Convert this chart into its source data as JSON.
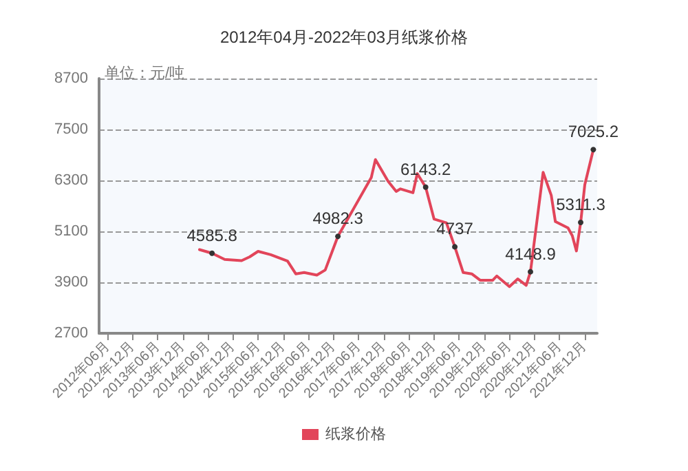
{
  "chart_data": {
    "type": "line",
    "title": "2012年04月-2022年03月纸浆价格",
    "ylabel": "单位：元/吨",
    "x": [
      "2014-04",
      "2014-07",
      "2014-10",
      "2015-02",
      "2015-04",
      "2015-06",
      "2015-09",
      "2016-01",
      "2016-03",
      "2016-05",
      "2016-08",
      "2016-10",
      "2017-01",
      "2017-09",
      "2017-10",
      "2018-01",
      "2018-03",
      "2018-04",
      "2018-07",
      "2018-08",
      "2018-09",
      "2018-10",
      "2018-12",
      "2019-03",
      "2019-05",
      "2019-07",
      "2019-09",
      "2019-11",
      "2020-02",
      "2020-03",
      "2020-06",
      "2020-08",
      "2020-10",
      "2020-11",
      "2021-02",
      "2021-04",
      "2021-05",
      "2021-08",
      "2021-09",
      "2021-10",
      "2021-11",
      "2021-12",
      "2022-02"
    ],
    "series": [
      {
        "name": "纸浆价格",
        "color": "#e2455a",
        "values": [
          4670,
          4585.8,
          4440,
          4410,
          4500,
          4630,
          4550,
          4400,
          4100,
          4130,
          4070,
          4190,
          4982.3,
          6370,
          6790,
          6280,
          6040,
          6100,
          6010,
          6460,
          6300,
          6143.2,
          5390,
          5300,
          4737,
          4130,
          4100,
          3950,
          3950,
          4050,
          3800,
          3980,
          3830,
          4148.9,
          6490,
          5950,
          5330,
          5180,
          5000,
          4640,
          5311.3,
          6200,
          7025.2
        ],
        "value_labels": [
          null,
          "4585.8",
          null,
          null,
          null,
          null,
          null,
          null,
          null,
          null,
          null,
          null,
          "4982.3",
          null,
          null,
          null,
          null,
          null,
          null,
          null,
          null,
          "6143.2",
          null,
          null,
          "4737",
          null,
          null,
          null,
          null,
          null,
          null,
          null,
          null,
          "4148.9",
          null,
          null,
          null,
          null,
          null,
          null,
          "5311.3",
          null,
          "7025.2"
        ]
      }
    ],
    "xlim": [
      "2012-04",
      "2022-03"
    ],
    "xticks": [
      {
        "value": "2012-06",
        "label": "2012年06月"
      },
      {
        "value": "2012-12",
        "label": "2012年12月"
      },
      {
        "value": "2013-06",
        "label": "2013年06月"
      },
      {
        "value": "2013-12",
        "label": "2013年12月"
      },
      {
        "value": "2014-06",
        "label": "2014年06月"
      },
      {
        "value": "2014-12",
        "label": "2014年12月"
      },
      {
        "value": "2015-06",
        "label": "2015年06月"
      },
      {
        "value": "2015-12",
        "label": "2015年12月"
      },
      {
        "value": "2016-06",
        "label": "2016年06月"
      },
      {
        "value": "2016-12",
        "label": "2016年12月"
      },
      {
        "value": "2017-06",
        "label": "2017年06月"
      },
      {
        "value": "2017-12",
        "label": "2017年12月"
      },
      {
        "value": "2018-06",
        "label": "2018年06月"
      },
      {
        "value": "2018-12",
        "label": "2018年12月"
      },
      {
        "value": "2019-06",
        "label": "2019年06月"
      },
      {
        "value": "2019-12",
        "label": "2019年12月"
      },
      {
        "value": "2020-06",
        "label": "2020年06月"
      },
      {
        "value": "2020-12",
        "label": "2020年12月"
      },
      {
        "value": "2021-06",
        "label": "2021年06月"
      },
      {
        "value": "2021-12",
        "label": "2021年12月"
      }
    ],
    "ylim": [
      2700,
      8700
    ],
    "yticks": [
      2700,
      3900,
      5100,
      6300,
      7500,
      8700
    ],
    "grid": "y",
    "legend": "bottom",
    "line_style": "solid"
  }
}
